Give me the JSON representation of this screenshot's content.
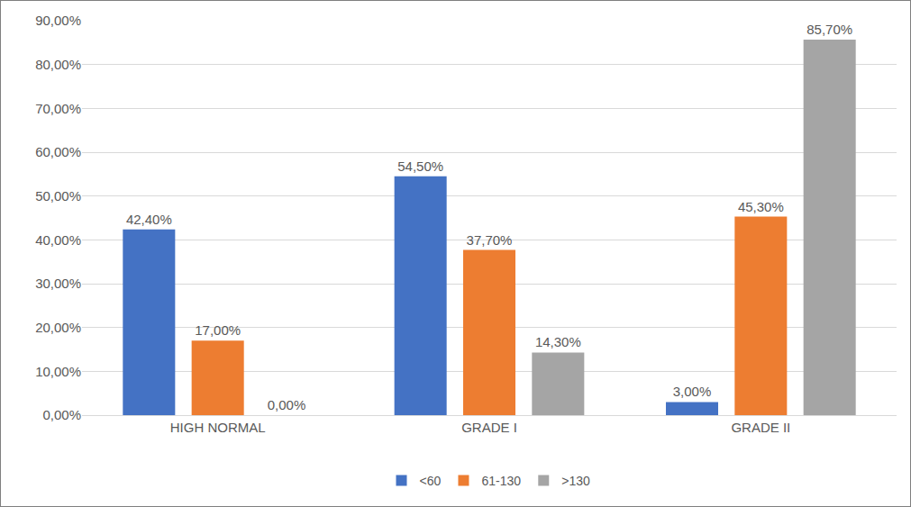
{
  "chart_data": {
    "type": "bar",
    "categories": [
      "HIGH NORMAL",
      "GRADE I",
      "GRADE II"
    ],
    "series": [
      {
        "name": "<60",
        "color": "#4472c4",
        "values": [
          42.4,
          54.5,
          3.0
        ],
        "value_labels": [
          "42,40%",
          "54,50%",
          "3,00%"
        ]
      },
      {
        "name": "61-130",
        "color": "#ed7d31",
        "values": [
          17.0,
          37.7,
          45.3
        ],
        "value_labels": [
          "17,00%",
          "37,70%",
          "45,30%"
        ]
      },
      {
        "name": ">130",
        "color": "#a5a5a5",
        "values": [
          0.0,
          14.3,
          85.7
        ],
        "value_labels": [
          "0,00%",
          "14,30%",
          "85,70%"
        ]
      }
    ],
    "ylim": [
      0,
      90
    ],
    "yticks": [
      {
        "value": 0,
        "label": "0,00%"
      },
      {
        "value": 10,
        "label": "10,00%"
      },
      {
        "value": 20,
        "label": "20,00%"
      },
      {
        "value": 30,
        "label": "30,00%"
      },
      {
        "value": 40,
        "label": "40,00%"
      },
      {
        "value": 50,
        "label": "50,00%"
      },
      {
        "value": 60,
        "label": "60,00%"
      },
      {
        "value": 70,
        "label": "70,00%"
      },
      {
        "value": 80,
        "label": "80,00%"
      },
      {
        "value": 90,
        "label": "90,00%"
      }
    ],
    "grid": true,
    "legend": "bottom",
    "data_labels": true
  }
}
